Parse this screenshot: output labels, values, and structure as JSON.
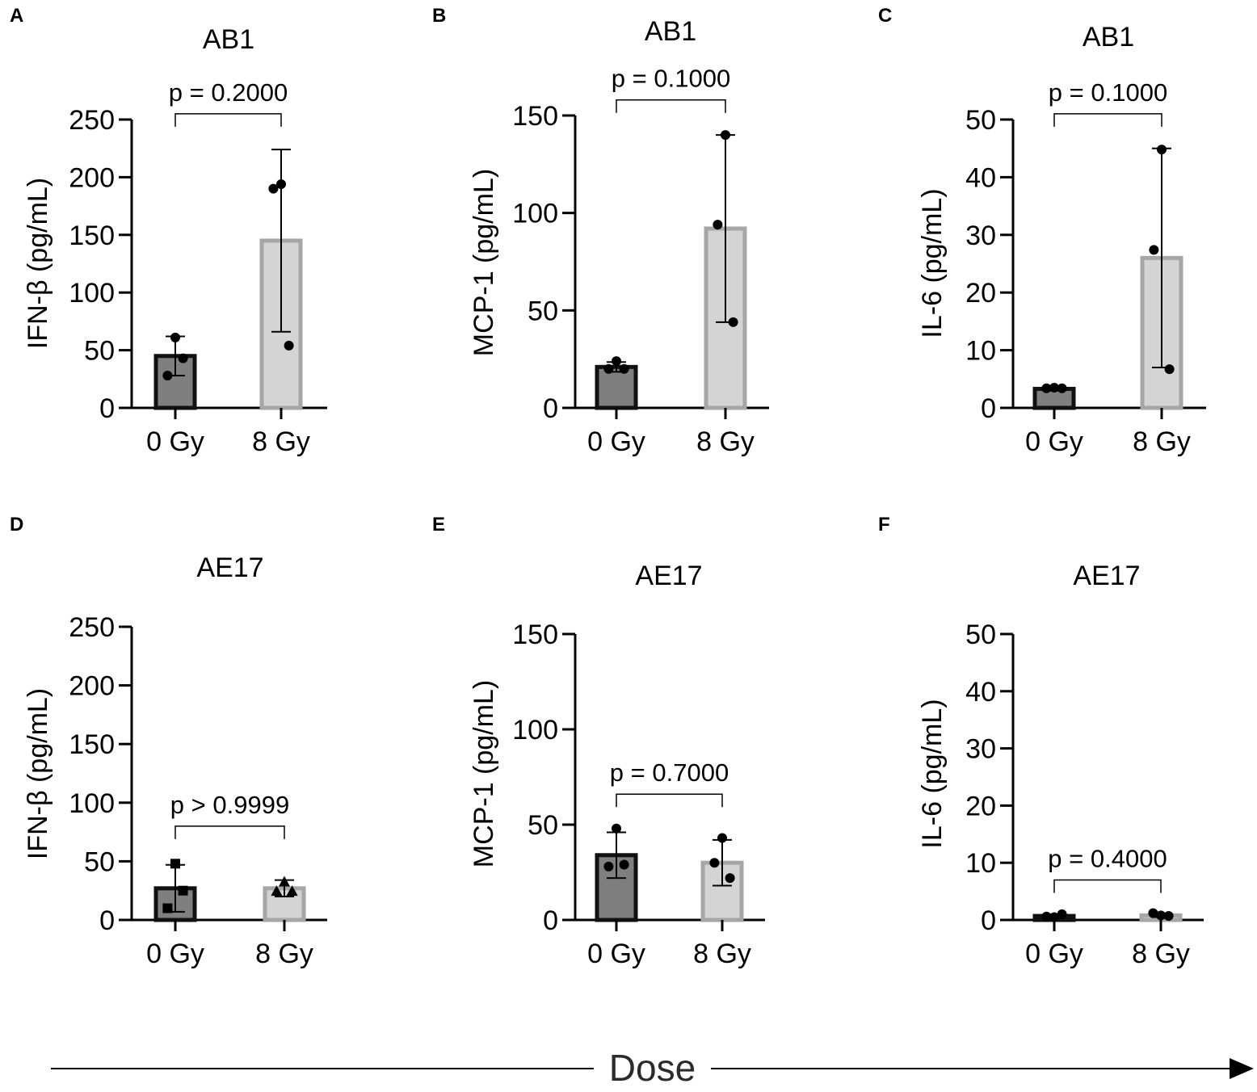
{
  "footer": {
    "dose_label": "Dose"
  },
  "colors": {
    "bar_0gy_fill": "#7f7f7f",
    "bar_0gy_edge": "#111111",
    "bar_8gy_fill": "#d4d4d4",
    "bar_8gy_edge": "#a6a6a6"
  },
  "chart_data": [
    {
      "panel": "A",
      "type": "bar",
      "title": "AB1",
      "ylabel": "IFN-β (pg/mL)",
      "categories": [
        "0 Gy",
        "8 Gy"
      ],
      "ylim": [
        0,
        250
      ],
      "yticks": [
        0,
        50,
        100,
        150,
        200,
        250
      ],
      "values": [
        45,
        145
      ],
      "sd": [
        17,
        79
      ],
      "points": [
        [
          61,
          43,
          28
        ],
        [
          194,
          190,
          54
        ]
      ],
      "marker": [
        "circle",
        "circle"
      ],
      "pvalue": "p = 0.2000",
      "bracket_y": 255
    },
    {
      "panel": "B",
      "type": "bar",
      "title": "AB1",
      "ylabel": "MCP-1 (pg/mL)",
      "categories": [
        "0 Gy",
        "8 Gy"
      ],
      "ylim": [
        0,
        150
      ],
      "yticks": [
        0,
        50,
        100,
        150
      ],
      "values": [
        21,
        92
      ],
      "sd": [
        2.5,
        48
      ],
      "points": [
        [
          24,
          20,
          20
        ],
        [
          140,
          94,
          44
        ]
      ],
      "marker": [
        "circle",
        "circle"
      ],
      "pvalue": "p = 0.1000",
      "bracket_y": 158
    },
    {
      "panel": "C",
      "type": "bar",
      "title": "AB1",
      "ylabel": "IL-6 (pg/mL)",
      "categories": [
        "0 Gy",
        "8 Gy"
      ],
      "ylim": [
        0,
        50
      ],
      "yticks": [
        0,
        10,
        20,
        30,
        40,
        50
      ],
      "values": [
        3.3,
        26
      ],
      "sd": [
        0.3,
        19
      ],
      "points": [
        [
          3.5,
          3.4,
          3.4
        ],
        [
          44.8,
          27.4,
          6.7
        ]
      ],
      "marker": [
        "circle",
        "circle"
      ],
      "pvalue": "p = 0.1000",
      "bracket_y": 51
    },
    {
      "panel": "D",
      "type": "bar",
      "title": "AE17",
      "ylabel": "IFN-β (pg/mL)",
      "categories": [
        "0 Gy",
        "8 Gy"
      ],
      "ylim": [
        0,
        250
      ],
      "yticks": [
        0,
        50,
        100,
        150,
        200,
        250
      ],
      "values": [
        27,
        27
      ],
      "sd": [
        20,
        7
      ],
      "points": [
        [
          48,
          25,
          10
        ],
        [
          32,
          24,
          24
        ]
      ],
      "marker": [
        "square",
        "triangle"
      ],
      "pvalue": "p > 0.9999",
      "bracket_y": 80
    },
    {
      "panel": "E",
      "type": "bar",
      "title": "AE17",
      "ylabel": "MCP-1 (pg/mL)",
      "categories": [
        "0 Gy",
        "8 Gy"
      ],
      "ylim": [
        0,
        150
      ],
      "yticks": [
        0,
        50,
        100,
        150
      ],
      "values": [
        34,
        30
      ],
      "sd": [
        12,
        12
      ],
      "points": [
        [
          48,
          29,
          28
        ],
        [
          43,
          30,
          22
        ]
      ],
      "marker": [
        "circle",
        "circle"
      ],
      "pvalue": "p = 0.7000",
      "bracket_y": 66
    },
    {
      "panel": "F",
      "type": "bar",
      "title": "AE17",
      "ylabel": "IL-6 (pg/mL)",
      "categories": [
        "0 Gy",
        "8 Gy"
      ],
      "ylim": [
        0,
        50
      ],
      "yticks": [
        0,
        10,
        20,
        30,
        40,
        50
      ],
      "values": [
        0.7,
        0.8
      ],
      "sd": [
        0.3,
        0.3
      ],
      "points": [
        [
          0.5,
          1.0,
          0.6
        ],
        [
          0.8,
          1.2,
          0.7
        ]
      ],
      "marker": [
        "circle",
        "circle"
      ],
      "pvalue": "p = 0.4000",
      "bracket_y": 7
    }
  ]
}
